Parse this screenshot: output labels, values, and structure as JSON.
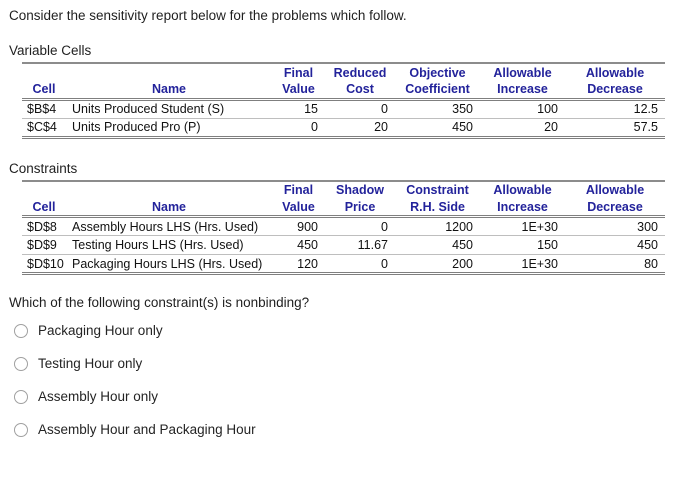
{
  "page": {
    "intro": "Consider the sensitivity report below for the problems which follow.",
    "question": "Which of the following constraint(s) is nonbinding?"
  },
  "variable_cells": {
    "label": "Variable Cells",
    "headers": [
      [
        "",
        "",
        "Final",
        "Reduced",
        "Objective",
        "Allowable",
        "Allowable"
      ],
      [
        "Cell",
        "Name",
        "Value",
        "Cost",
        "Coefficient",
        "Increase",
        "Decrease"
      ]
    ],
    "rows": [
      [
        "$B$4",
        "Units Produced Student (S)",
        "15",
        "0",
        "350",
        "100",
        "12.5"
      ],
      [
        "$C$4",
        "Units Produced Pro (P)",
        "0",
        "20",
        "450",
        "20",
        "57.5"
      ]
    ]
  },
  "constraints": {
    "label": "Constraints",
    "headers": [
      [
        "",
        "",
        "Final",
        "Shadow",
        "Constraint",
        "Allowable",
        "Allowable"
      ],
      [
        "Cell",
        "Name",
        "Value",
        "Price",
        "R.H. Side",
        "Increase",
        "Decrease"
      ]
    ],
    "rows": [
      [
        "$D$8",
        "Assembly Hours LHS (Hrs. Used)",
        "900",
        "0",
        "1200",
        "1E+30",
        "300"
      ],
      [
        "$D$9",
        "Testing Hours LHS (Hrs. Used)",
        "450",
        "11.67",
        "450",
        "150",
        "450"
      ],
      [
        "$D$10",
        "Packaging Hours LHS (Hrs. Used)",
        "120",
        "0",
        "200",
        "1E+30",
        "80"
      ]
    ]
  },
  "options": [
    {
      "label": "Packaging Hour only"
    },
    {
      "label": "Testing Hour only"
    },
    {
      "label": "Assembly Hour only"
    },
    {
      "label": "Assembly Hour and Packaging Hour"
    }
  ],
  "colors": {
    "header_text": "#23239B",
    "border_strong": "#7F7F7F",
    "border_top": "#8C8C8C",
    "border_light": "#BEBEBE",
    "radio_border": "#A0A0A0",
    "text": "#1F1F1F"
  }
}
